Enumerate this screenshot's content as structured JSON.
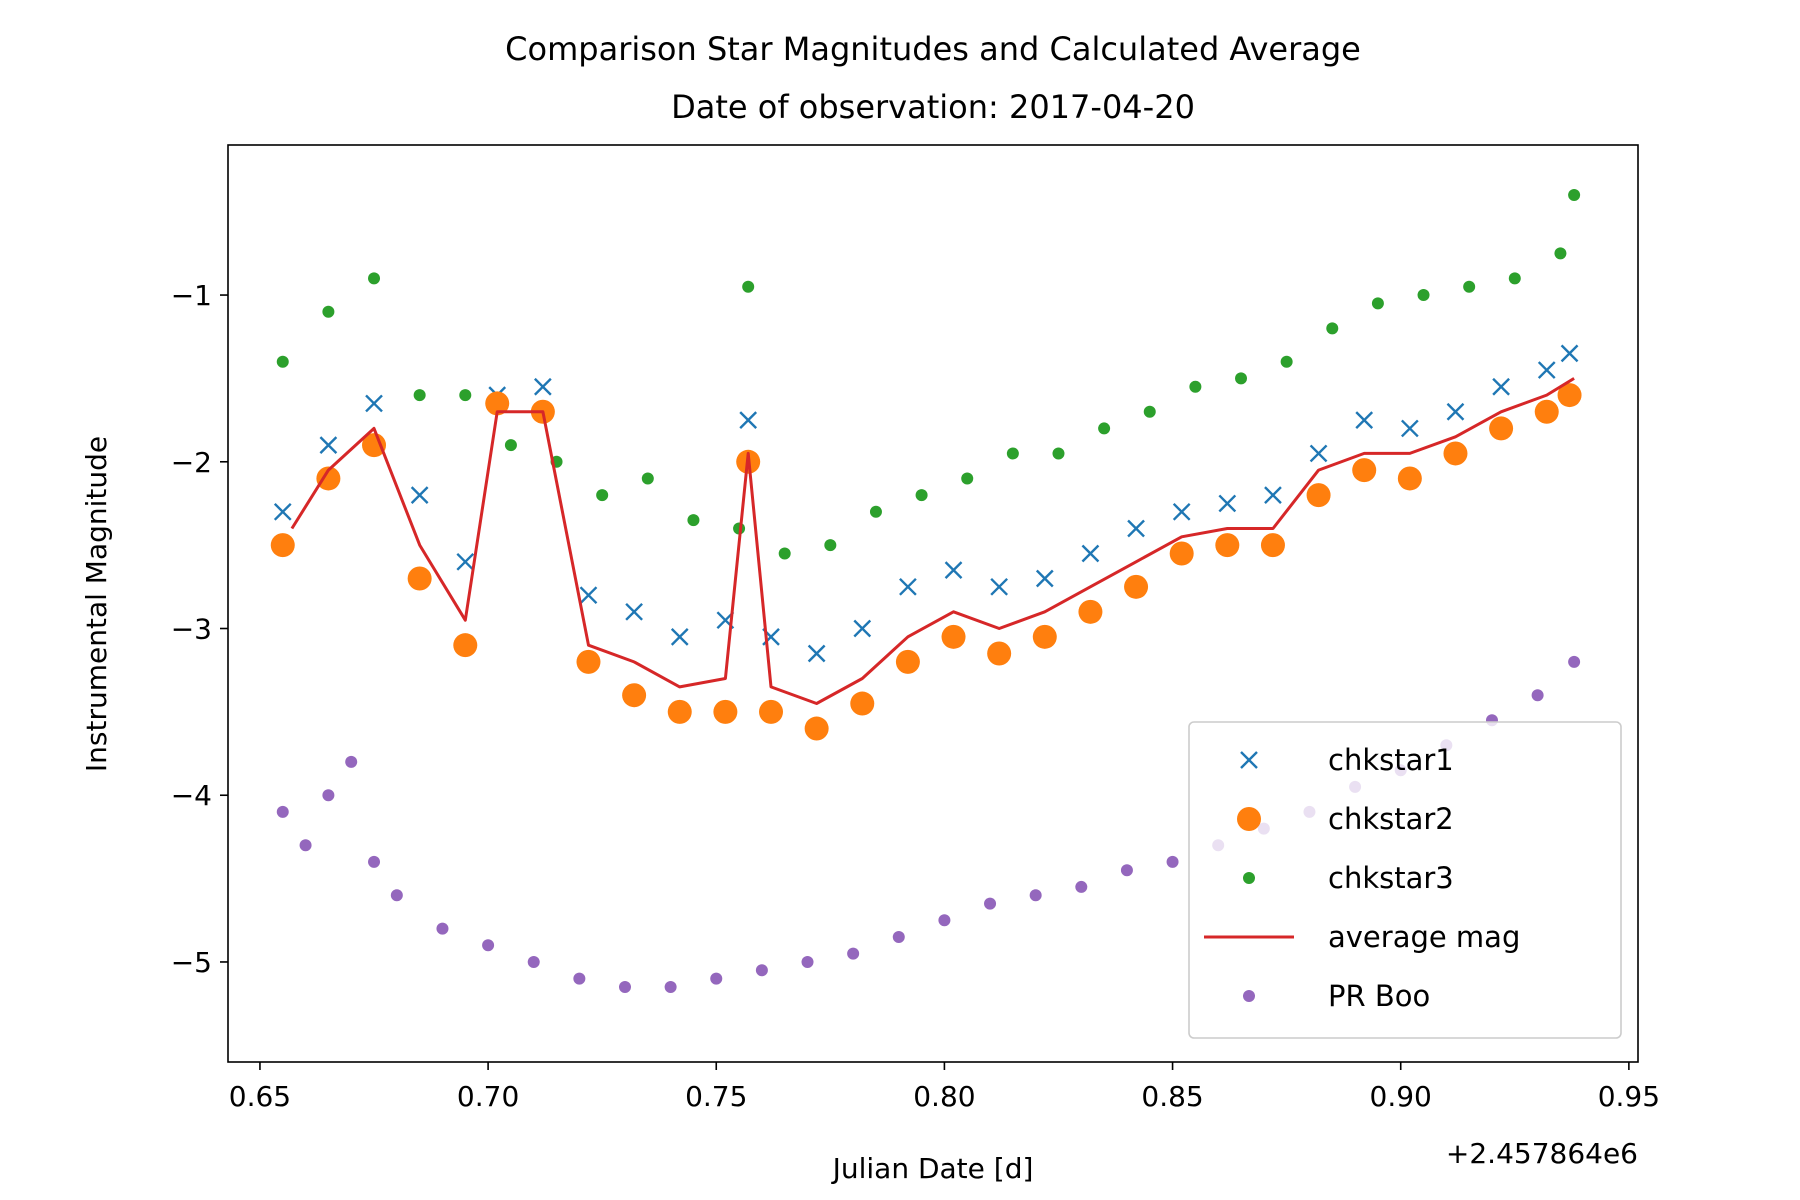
{
  "chart_data": {
    "type": "scatter",
    "title": "Comparison Star Magnitudes and Calculated Average",
    "subtitle": "Date of observation: 2017-04-20",
    "xlabel": "Julian Date [d]",
    "ylabel": "Instrumental Magnitude",
    "x_offset_label": "+2.457864e6",
    "xlim": [
      0.643,
      0.952
    ],
    "ylim": [
      -5.6,
      -0.1
    ],
    "y_inverted": true,
    "xticks": [
      0.65,
      0.7,
      0.75,
      0.8,
      0.85,
      0.9,
      0.95
    ],
    "xtick_labels": [
      "0.65",
      "0.70",
      "0.75",
      "0.80",
      "0.85",
      "0.90",
      "0.95"
    ],
    "yticks": [
      -1,
      -2,
      -3,
      -4,
      -5
    ],
    "ytick_labels": [
      "−1",
      "−2",
      "−3",
      "−4",
      "−5"
    ],
    "grid": false,
    "legend_position": "lower-right",
    "series": [
      {
        "name": "chkstar1",
        "marker": "x",
        "color": "#1f77b4",
        "x": [
          0.655,
          0.665,
          0.675,
          0.685,
          0.695,
          0.702,
          0.712,
          0.722,
          0.732,
          0.742,
          0.752,
          0.757,
          0.762,
          0.772,
          0.782,
          0.792,
          0.802,
          0.812,
          0.822,
          0.832,
          0.842,
          0.852,
          0.862,
          0.872,
          0.882,
          0.892,
          0.902,
          0.912,
          0.922,
          0.932,
          0.937
        ],
        "y": [
          -2.3,
          -1.9,
          -1.65,
          -2.2,
          -2.6,
          -1.6,
          -1.55,
          -2.8,
          -2.9,
          -3.05,
          -2.95,
          -1.75,
          -3.05,
          -3.15,
          -3.0,
          -2.75,
          -2.65,
          -2.75,
          -2.7,
          -2.55,
          -2.4,
          -2.3,
          -2.25,
          -2.2,
          -1.95,
          -1.75,
          -1.8,
          -1.7,
          -1.55,
          -1.45,
          -1.35
        ]
      },
      {
        "name": "chkstar2",
        "marker": "o",
        "color": "#ff7f0e",
        "x": [
          0.655,
          0.665,
          0.675,
          0.685,
          0.695,
          0.702,
          0.712,
          0.722,
          0.732,
          0.742,
          0.752,
          0.757,
          0.762,
          0.772,
          0.782,
          0.792,
          0.802,
          0.812,
          0.822,
          0.832,
          0.842,
          0.852,
          0.862,
          0.872,
          0.882,
          0.892,
          0.902,
          0.912,
          0.922,
          0.932,
          0.937
        ],
        "y": [
          -2.5,
          -2.1,
          -1.9,
          -2.7,
          -3.1,
          -1.65,
          -1.7,
          -3.2,
          -3.4,
          -3.5,
          -3.5,
          -2.0,
          -3.5,
          -3.6,
          -3.45,
          -3.2,
          -3.05,
          -3.15,
          -3.05,
          -2.9,
          -2.75,
          -2.55,
          -2.5,
          -2.5,
          -2.2,
          -2.05,
          -2.1,
          -1.95,
          -1.8,
          -1.7,
          -1.6
        ]
      },
      {
        "name": "chkstar3",
        "marker": "point",
        "color": "#2ca02c",
        "x": [
          0.655,
          0.665,
          0.675,
          0.685,
          0.695,
          0.705,
          0.715,
          0.725,
          0.735,
          0.745,
          0.755,
          0.757,
          0.765,
          0.775,
          0.785,
          0.795,
          0.805,
          0.815,
          0.825,
          0.835,
          0.845,
          0.855,
          0.865,
          0.875,
          0.885,
          0.895,
          0.905,
          0.915,
          0.925,
          0.935,
          0.938
        ],
        "y": [
          -1.4,
          -1.1,
          -0.9,
          -1.6,
          -1.6,
          -1.9,
          -2.0,
          -2.2,
          -2.1,
          -2.35,
          -2.4,
          -0.95,
          -2.55,
          -2.5,
          -2.3,
          -2.2,
          -2.1,
          -1.95,
          -1.95,
          -1.8,
          -1.7,
          -1.55,
          -1.5,
          -1.4,
          -1.2,
          -1.05,
          -1.0,
          -0.95,
          -0.9,
          -0.75,
          -0.4
        ]
      },
      {
        "name": "average mag",
        "marker": "line",
        "color": "#d62728",
        "x": [
          0.657,
          0.665,
          0.675,
          0.685,
          0.695,
          0.702,
          0.712,
          0.722,
          0.732,
          0.742,
          0.752,
          0.757,
          0.762,
          0.772,
          0.782,
          0.792,
          0.802,
          0.812,
          0.822,
          0.832,
          0.842,
          0.852,
          0.862,
          0.872,
          0.882,
          0.892,
          0.902,
          0.912,
          0.922,
          0.932,
          0.938
        ],
        "y": [
          -2.4,
          -2.05,
          -1.8,
          -2.5,
          -2.95,
          -1.7,
          -1.7,
          -3.1,
          -3.2,
          -3.35,
          -3.3,
          -1.95,
          -3.35,
          -3.45,
          -3.3,
          -3.05,
          -2.9,
          -3.0,
          -2.9,
          -2.75,
          -2.6,
          -2.45,
          -2.4,
          -2.4,
          -2.05,
          -1.95,
          -1.95,
          -1.85,
          -1.7,
          -1.6,
          -1.5
        ]
      },
      {
        "name": "PR Boo",
        "marker": "point",
        "color": "#9467bd",
        "x": [
          0.655,
          0.66,
          0.665,
          0.67,
          0.675,
          0.68,
          0.69,
          0.7,
          0.71,
          0.72,
          0.73,
          0.74,
          0.75,
          0.76,
          0.77,
          0.78,
          0.79,
          0.8,
          0.81,
          0.82,
          0.83,
          0.84,
          0.85,
          0.86,
          0.87,
          0.88,
          0.89,
          0.9,
          0.91,
          0.92,
          0.93,
          0.938
        ],
        "y": [
          -4.1,
          -4.3,
          -4.0,
          -3.8,
          -4.4,
          -4.6,
          -4.8,
          -4.9,
          -5.0,
          -5.1,
          -5.15,
          -5.15,
          -5.1,
          -5.05,
          -5.0,
          -4.95,
          -4.85,
          -4.75,
          -4.65,
          -4.6,
          -4.55,
          -4.45,
          -4.4,
          -4.3,
          -4.2,
          -4.1,
          -3.95,
          -3.85,
          -3.7,
          -3.55,
          -3.4,
          -3.2
        ]
      }
    ]
  }
}
